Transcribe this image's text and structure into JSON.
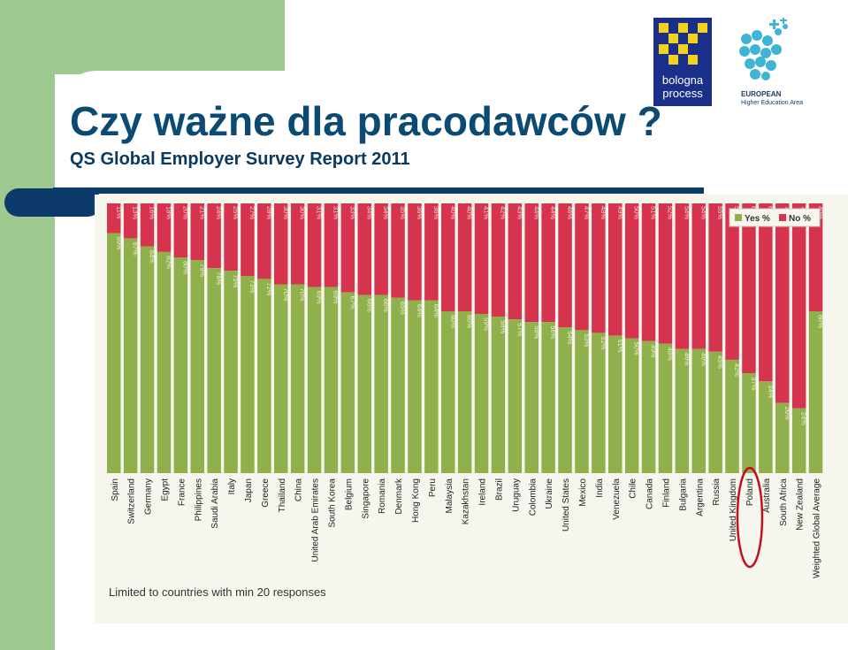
{
  "slide": {
    "title": "Czy ważne dla pracodawców ?",
    "subtitle": "QS Global Employer Survey Report 2011"
  },
  "logos": {
    "bologna_line1": "bologna",
    "bologna_line2": "process",
    "ehea_line1": "EUROPEAN",
    "ehea_line2": "Higher Education Area"
  },
  "chart_data": {
    "type": "bar",
    "stacked": true,
    "percent": true,
    "categories": [
      "Spain",
      "Switzerland",
      "Germany",
      "Egypt",
      "France",
      "Philippines",
      "Saudi Arabia",
      "Italy",
      "Japan",
      "Greece",
      "Thailand",
      "China",
      "United Arab Emirates",
      "South Korea",
      "Belgium",
      "Singapore",
      "Romania",
      "Denmark",
      "Hong Kong",
      "Peru",
      "Malaysia",
      "Kazakhstan",
      "Ireland",
      "Brazil",
      "Uruguay",
      "Colombia",
      "Ukraine",
      "United States",
      "Mexico",
      "India",
      "Venezuela",
      "Chile",
      "Canada",
      "Finland",
      "Bulgaria",
      "Argentina",
      "Russia",
      "United Kingdom",
      "Poland",
      "Australia",
      "South Africa",
      "New Zealand",
      "Weighted Global Average"
    ],
    "series": [
      {
        "name": "Yes %",
        "color": "#8fb04a",
        "values": [
          89,
          87,
          84,
          82,
          80,
          79,
          76,
          75,
          73,
          72,
          70,
          70,
          69,
          69,
          67,
          66,
          66,
          65,
          64,
          64,
          60,
          60,
          59,
          58,
          57,
          56,
          56,
          54,
          53,
          52,
          51,
          50,
          49,
          48,
          46,
          46,
          45,
          42,
          37,
          34,
          26,
          24,
          60
        ]
      },
      {
        "name": "No %",
        "color": "#d6344e",
        "values": [
          11,
          13,
          16,
          18,
          20,
          21,
          24,
          25,
          27,
          28,
          30,
          30,
          31,
          31,
          33,
          34,
          34,
          35,
          36,
          36,
          40,
          40,
          41,
          42,
          43,
          44,
          44,
          46,
          47,
          48,
          49,
          50,
          51,
          52,
          54,
          54,
          55,
          58,
          63,
          66,
          74,
          76,
          40
        ]
      }
    ],
    "legend": "top-right",
    "highlight": "Poland",
    "note": "Limited to countries with min 20 responses"
  }
}
